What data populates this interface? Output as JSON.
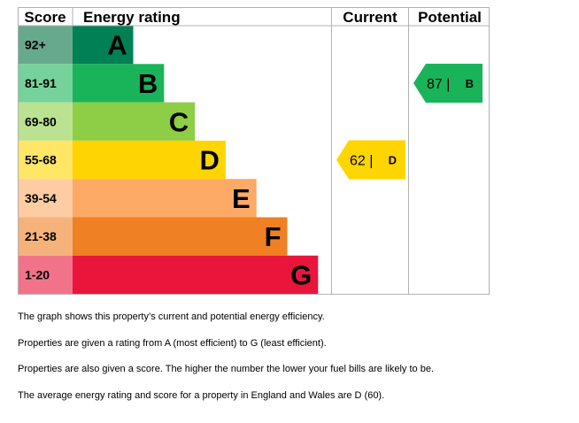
{
  "chart_data": {
    "type": "bar",
    "headers": {
      "score": "Score",
      "rating": "Energy rating",
      "current": "Current",
      "potential": "Potential"
    },
    "bands": [
      {
        "label": "A",
        "score_range": "92+",
        "color": "#008054",
        "score_color": "#66a98c"
      },
      {
        "label": "B",
        "score_range": "81-91",
        "color": "#19b459",
        "score_color": "#75d29b"
      },
      {
        "label": "C",
        "score_range": "69-80",
        "color": "#8dce46",
        "score_color": "#bbe290"
      },
      {
        "label": "D",
        "score_range": "55-68",
        "color": "#ffd500",
        "score_color": "#ffe666"
      },
      {
        "label": "E",
        "score_range": "39-54",
        "color": "#fcaa65",
        "score_color": "#fdcca3"
      },
      {
        "label": "F",
        "score_range": "21-38",
        "color": "#ef8023",
        "score_color": "#f5b37b"
      },
      {
        "label": "G",
        "score_range": "1-20",
        "color": "#e9153b",
        "score_color": "#f27389"
      }
    ],
    "current": {
      "score": 62,
      "band": "D",
      "label_score": "62 |",
      "label_band": "D",
      "color": "#ffd500"
    },
    "potential": {
      "score": 87,
      "band": "B",
      "label_score": "87 |",
      "label_band": "B",
      "color": "#19b459"
    }
  },
  "notes": [
    "The graph shows this property’s current and potential energy efficiency.",
    "Properties are given a rating from A (most efficient) to G (least efficient).",
    "Properties are also given a score. The higher the number the lower your fuel bills are likely to be.",
    "The average energy rating and score for a property in England and Wales are D (60)."
  ]
}
